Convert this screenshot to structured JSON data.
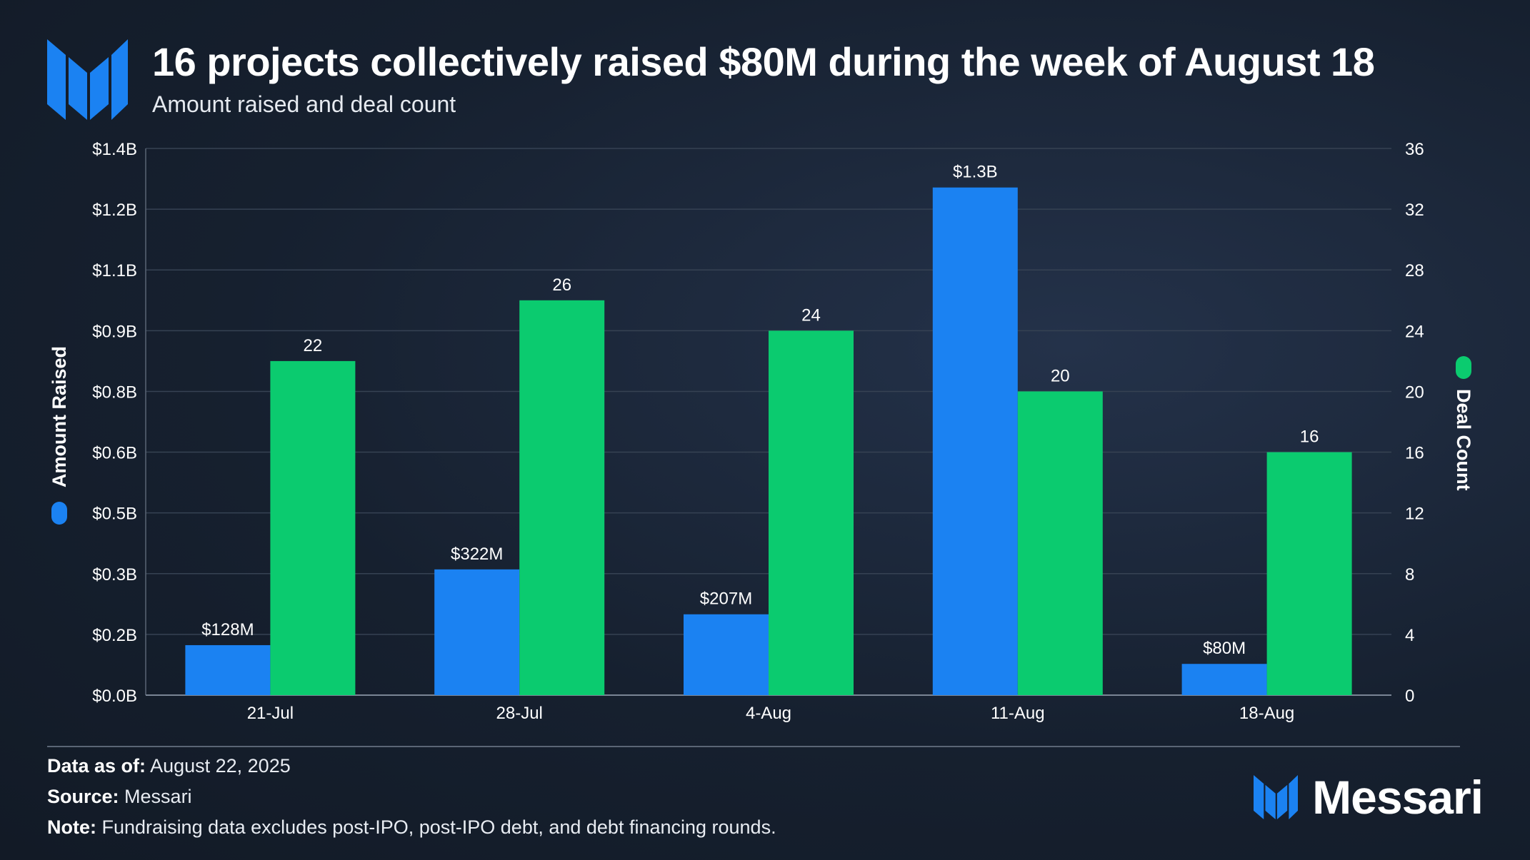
{
  "header": {
    "title": "16 projects collectively raised $80M during the week of August 18",
    "subtitle": "Amount raised and deal count"
  },
  "colors": {
    "amount": "#1b82f2",
    "deals": "#0bcb6f",
    "grid": "#364253",
    "text": "#ffffff"
  },
  "chart_data": {
    "type": "bar",
    "title": "16 projects collectively raised $80M during the week of August 18",
    "subtitle": "Amount raised and deal count",
    "categories": [
      "21-Jul",
      "28-Jul",
      "4-Aug",
      "11-Aug",
      "18-Aug"
    ],
    "series": [
      {
        "name": "Amount Raised",
        "axis": "left",
        "values": [
          128,
          322,
          207,
          1300,
          80
        ],
        "unit": "M USD",
        "labels": [
          "$128M",
          "$322M",
          "$207M",
          "$1.3B",
          "$80M"
        ]
      },
      {
        "name": "Deal Count",
        "axis": "right",
        "values": [
          22,
          26,
          24,
          20,
          16
        ],
        "labels": [
          "22",
          "26",
          "24",
          "20",
          "16"
        ]
      }
    ],
    "left_axis": {
      "label": "Amount Raised",
      "ylim": [
        0,
        1400
      ],
      "ticks": [
        "$0.0B",
        "$0.2B",
        "$0.3B",
        "$0.5B",
        "$0.6B",
        "$0.8B",
        "$0.9B",
        "$1.1B",
        "$1.2B",
        "$1.4B"
      ]
    },
    "right_axis": {
      "label": "Deal Count",
      "ylim": [
        0,
        36
      ],
      "ticks": [
        "0",
        "4",
        "8",
        "12",
        "16",
        "20",
        "24",
        "28",
        "32",
        "36"
      ]
    },
    "grid": true
  },
  "footer": {
    "data_label": "Data as of:",
    "data_value": "August 22, 2025",
    "source_label": "Source:",
    "source_value": "Messari",
    "note_label": "Note:",
    "note_value": "Fundraising data excludes post-IPO, post-IPO debt, and debt financing rounds.",
    "brand": "Messari"
  }
}
